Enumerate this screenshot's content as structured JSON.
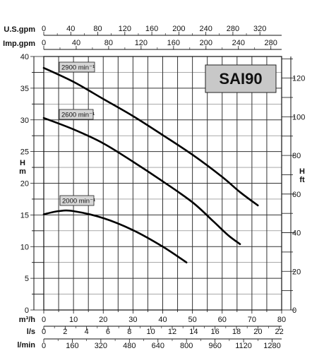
{
  "chart_data": {
    "type": "line",
    "title": "SAI90",
    "xlabel": "m³/h",
    "ylabel": "H m",
    "y2label": "H ft",
    "xlim": [
      0,
      80
    ],
    "ylim": [
      0,
      40
    ],
    "y2lim": [
      0,
      131.2
    ],
    "grid": true,
    "series": [
      {
        "name": "2900 min⁻¹",
        "points": [
          [
            0,
            38.2
          ],
          [
            10,
            36.0
          ],
          [
            20,
            33.3
          ],
          [
            30,
            30.6
          ],
          [
            40,
            27.6
          ],
          [
            50,
            24.5
          ],
          [
            60,
            21.0
          ],
          [
            66,
            18.6
          ],
          [
            72,
            16.5
          ]
        ]
      },
      {
        "name": "2600 min⁻¹",
        "points": [
          [
            0,
            30.3
          ],
          [
            10,
            28.5
          ],
          [
            20,
            26.3
          ],
          [
            30,
            23.4
          ],
          [
            40,
            20.3
          ],
          [
            50,
            17.0
          ],
          [
            57,
            14.0
          ],
          [
            62,
            11.8
          ],
          [
            66,
            10.4
          ]
        ]
      },
      {
        "name": "2000 min⁻¹",
        "points": [
          [
            0,
            15.1
          ],
          [
            5,
            15.6
          ],
          [
            10,
            15.6
          ],
          [
            20,
            14.5
          ],
          [
            30,
            12.6
          ],
          [
            40,
            10.0
          ],
          [
            48,
            7.5
          ]
        ]
      }
    ],
    "y_ticks": [
      0,
      5,
      10,
      15,
      20,
      25,
      30,
      35,
      40
    ],
    "y2_ticks": [
      0,
      20,
      40,
      60,
      80,
      100,
      120
    ],
    "x_ticks": [
      0,
      10,
      20,
      30,
      40,
      50,
      60,
      70,
      80
    ],
    "top_axes": [
      {
        "label": "U.S.gpm",
        "max": 352.2,
        "ticks": [
          0,
          40,
          80,
          120,
          160,
          200,
          240,
          280,
          320
        ]
      },
      {
        "label": "Imp.gpm",
        "max": 293.3,
        "ticks": [
          0,
          40,
          80,
          120,
          160,
          200,
          240,
          280
        ]
      }
    ],
    "bottom_axes": [
      {
        "label": "l/s",
        "max": 22.22,
        "ticks": [
          0,
          2,
          4,
          6,
          8,
          10,
          12,
          14,
          16,
          18,
          20,
          22
        ]
      },
      {
        "label": "l/min",
        "max": 1333.3,
        "ticks": [
          0,
          160,
          320,
          480,
          640,
          800,
          960,
          1120,
          1280
        ]
      }
    ]
  }
}
